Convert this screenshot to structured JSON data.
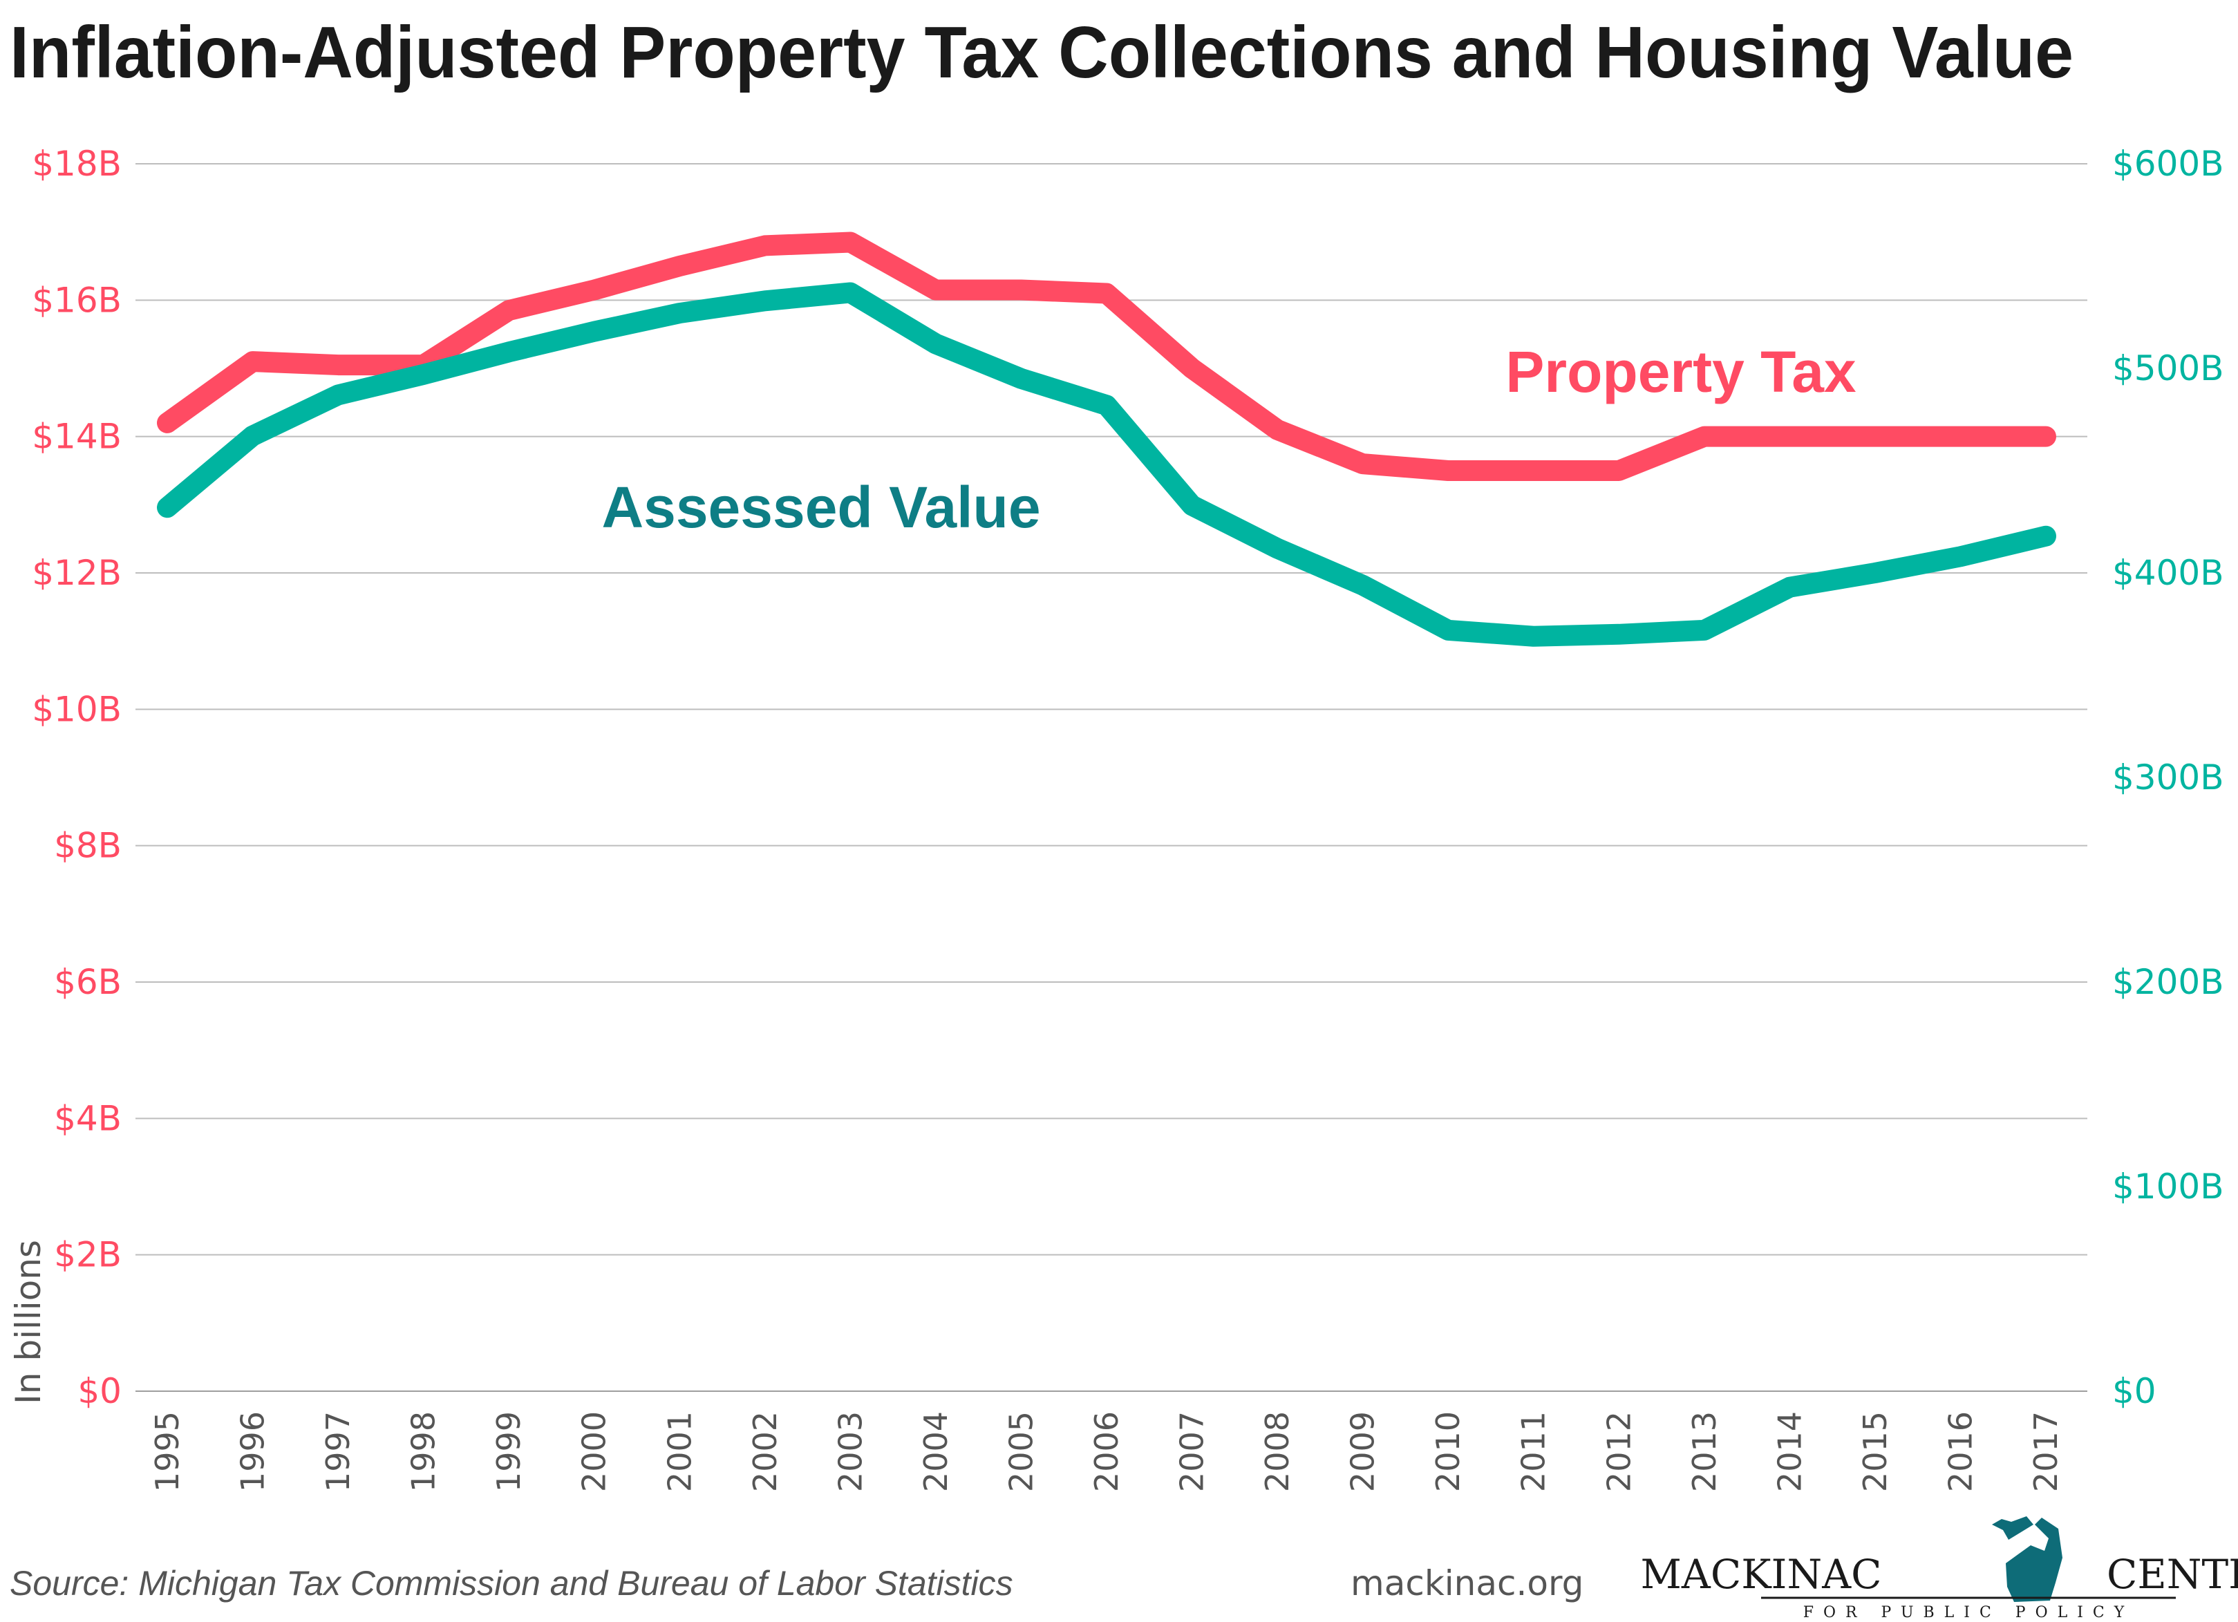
{
  "colors": {
    "property_tax": "#FF4B63",
    "assessed_value": "#00B4A0",
    "assessed_label": "#0E7E85",
    "title": "#1a1a1a",
    "grid": "#bdbdbd",
    "muted": "#555555",
    "logo_icon": "#0E6C78"
  },
  "footer": {
    "source": "Source: Michigan Tax Commission and Bureau of Labor Statistics",
    "site": "mackinac.org",
    "logo_left": "MACKINAC",
    "logo_right": "CENTER",
    "logo_sub": "FOR PUBLIC POLICY",
    "logo_icon": "michigan-state-icon"
  },
  "chart_data": {
    "type": "line",
    "title": "Inflation-Adjusted Property Tax Collections and Housing Value",
    "ylabel": "In billions",
    "x": [
      "1995",
      "1996",
      "1997",
      "1998",
      "1999",
      "2000",
      "2001",
      "2002",
      "2003",
      "2004",
      "2005",
      "2006",
      "2007",
      "2008",
      "2009",
      "2010",
      "2011",
      "2012",
      "2013",
      "2014",
      "2015",
      "2016",
      "2017"
    ],
    "y_left": {
      "ylim": [
        0,
        18
      ],
      "ticks": [
        0,
        2,
        4,
        6,
        8,
        10,
        12,
        14,
        16,
        18
      ],
      "tick_labels": [
        "$0",
        "$2B",
        "$4B",
        "$6B",
        "$8B",
        "$10B",
        "$12B",
        "$14B",
        "$16B",
        "$18B"
      ]
    },
    "y_right": {
      "ylim": [
        0,
        600
      ],
      "ticks": [
        0,
        100,
        200,
        300,
        400,
        500,
        600
      ],
      "tick_labels": [
        "$0",
        "$100B",
        "$200B",
        "$300B",
        "$400B",
        "$500B",
        "$600B"
      ]
    },
    "grid": true,
    "series": [
      {
        "name": "Property Tax",
        "axis": "left",
        "values": [
          14.2,
          15.1,
          15.05,
          15.05,
          15.85,
          16.15,
          16.5,
          16.8,
          16.85,
          16.15,
          16.15,
          16.1,
          15.0,
          14.1,
          13.6,
          13.5,
          13.5,
          13.5,
          14.0,
          14.0,
          14.0,
          14.0,
          14.0
        ]
      },
      {
        "name": "Assessed Value",
        "axis": "right",
        "values": [
          432,
          467,
          487,
          497,
          508,
          518,
          527,
          533,
          537,
          512,
          495,
          482,
          433,
          412,
          394,
          372,
          369,
          370,
          372,
          393,
          400,
          408,
          418
        ]
      }
    ]
  }
}
